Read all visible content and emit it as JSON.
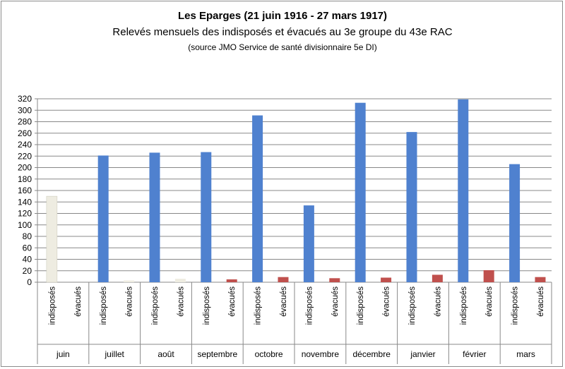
{
  "chart_data": {
    "type": "bar",
    "title": "Les Eparges (21  juin 1916 - 27 mars 1917)",
    "subtitle": "Relevés mensuels des  indisposés et évacués au 3e groupe du 43e RAC",
    "source": "(source JMO  Service de santé divisionnaire 5e DI)",
    "ylim": [
      0,
      320
    ],
    "yticks": [
      0,
      20,
      40,
      60,
      80,
      100,
      120,
      140,
      160,
      180,
      200,
      220,
      240,
      260,
      280,
      300,
      320
    ],
    "bar_labels": [
      "indisposés",
      "évacués"
    ],
    "groups": [
      {
        "month": "juin",
        "indisposes": 150,
        "evacues": 0
      },
      {
        "month": "juillet",
        "indisposes": 221,
        "evacues": 3
      },
      {
        "month": "août",
        "indisposes": 226,
        "evacues": 6
      },
      {
        "month": "septembre",
        "indisposes": 227,
        "evacues": 5
      },
      {
        "month": "octobre",
        "indisposes": 291,
        "evacues": 9
      },
      {
        "month": "novembre",
        "indisposes": 134,
        "evacues": 7
      },
      {
        "month": "décembre",
        "indisposes": 313,
        "evacues": 8
      },
      {
        "month": "janvier",
        "indisposes": 262,
        "evacues": 13
      },
      {
        "month": "février",
        "indisposes": 319,
        "evacues": 21
      },
      {
        "month": "mars",
        "indisposes": 206,
        "evacues": 9
      }
    ],
    "colors": {
      "indisposes": "#4f81cf",
      "evacues": "#c0504d",
      "juin_indisposes": "#eeece1",
      "light_evacues": "#eeece1",
      "grid": "#888888"
    }
  }
}
